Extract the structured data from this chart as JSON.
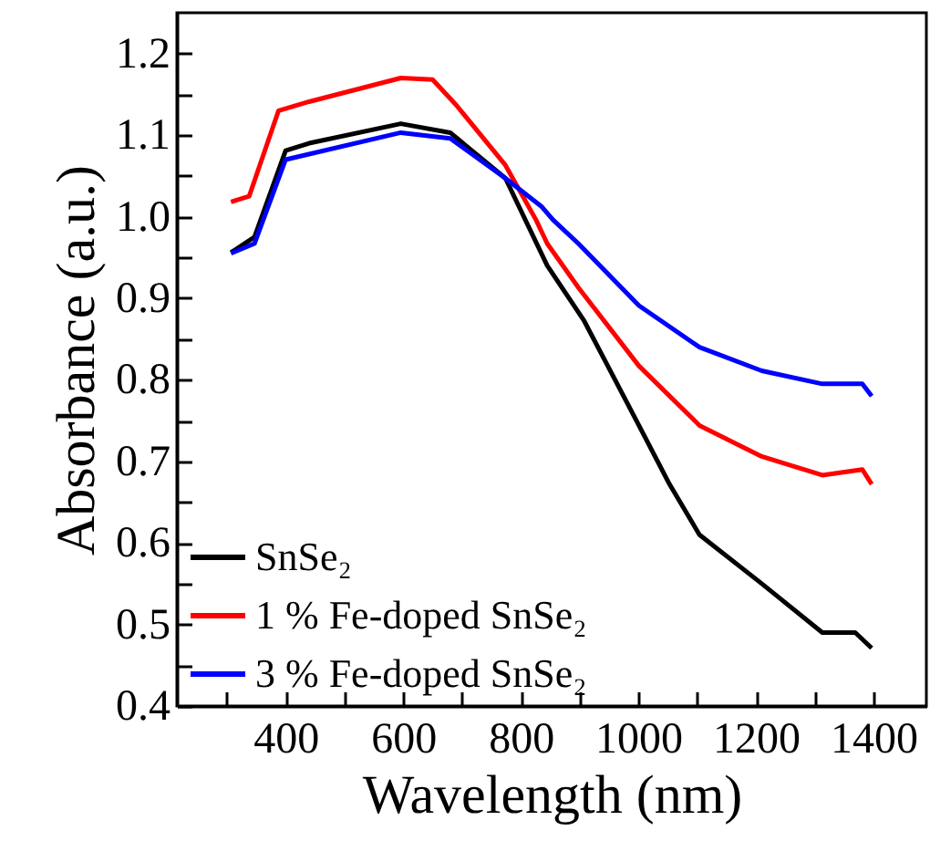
{
  "chart_data": {
    "type": "line",
    "xlabel": "Wavelength (nm)",
    "ylabel": "Absorbance (a.u.)",
    "xlim": [
      215,
      1490
    ],
    "ylim": [
      0.4,
      1.25
    ],
    "xticks": [
      {
        "value": 300,
        "label": null
      },
      400,
      {
        "value": 500,
        "label": null
      },
      600,
      {
        "value": 700,
        "label": null
      },
      800,
      {
        "value": 900,
        "label": null
      },
      1000,
      {
        "value": 1100,
        "label": null
      },
      1200,
      {
        "value": 1300,
        "label": null
      },
      1400
    ],
    "yticks": [
      0.4,
      {
        "value": 0.45,
        "label": null
      },
      0.5,
      {
        "value": 0.55,
        "label": null
      },
      0.6,
      {
        "value": 0.65,
        "label": null
      },
      0.7,
      {
        "value": 0.75,
        "label": null
      },
      0.8,
      {
        "value": 0.85,
        "label": null
      },
      0.9,
      {
        "value": 0.95,
        "label": null
      },
      {
        "value": 1,
        "label": "1.0"
      },
      {
        "value": 1.05,
        "label": null
      },
      1.1,
      {
        "value": 1.15,
        "label": null
      },
      1.2
    ],
    "legend": "bottom left",
    "grid": false,
    "marker": "none",
    "line_style": "solid",
    "series": [
      {
        "name": "SnSe₂",
        "color": "#000000",
        "x": [
          307,
          347,
          400,
          440,
          596,
          680,
          774,
          845,
          908,
          948,
          1001,
          1053,
          1104,
          1210,
          1313,
          1369,
          1397
        ],
        "values": [
          0.956,
          0.975,
          1.081,
          1.09,
          1.114,
          1.103,
          1.047,
          0.94,
          0.872,
          0.817,
          0.744,
          0.672,
          0.61,
          0.55,
          0.49,
          0.49,
          0.471
        ]
      },
      {
        "name": "1 % Fe-doped SnSe₂",
        "color": "#ff0000",
        "x": [
          307,
          338,
          388,
          440,
          596,
          650,
          690,
          774,
          826,
          845,
          898,
          1001,
          1104,
          1210,
          1313,
          1381,
          1397
        ],
        "values": [
          1.018,
          1.025,
          1.13,
          1.141,
          1.17,
          1.168,
          1.137,
          1.063,
          0.996,
          0.967,
          0.913,
          0.817,
          0.744,
          0.706,
          0.683,
          0.69,
          0.672
        ]
      },
      {
        "name": "3 % Fe-doped SnSe₂",
        "color": "#0000ff",
        "x": [
          307,
          347,
          400,
          596,
          680,
          774,
          836,
          855,
          898,
          1001,
          1104,
          1210,
          1313,
          1381,
          1397
        ],
        "values": [
          0.955,
          0.967,
          1.07,
          1.103,
          1.096,
          1.047,
          1.012,
          0.996,
          0.967,
          0.891,
          0.84,
          0.811,
          0.795,
          0.795,
          0.78
        ]
      }
    ]
  }
}
